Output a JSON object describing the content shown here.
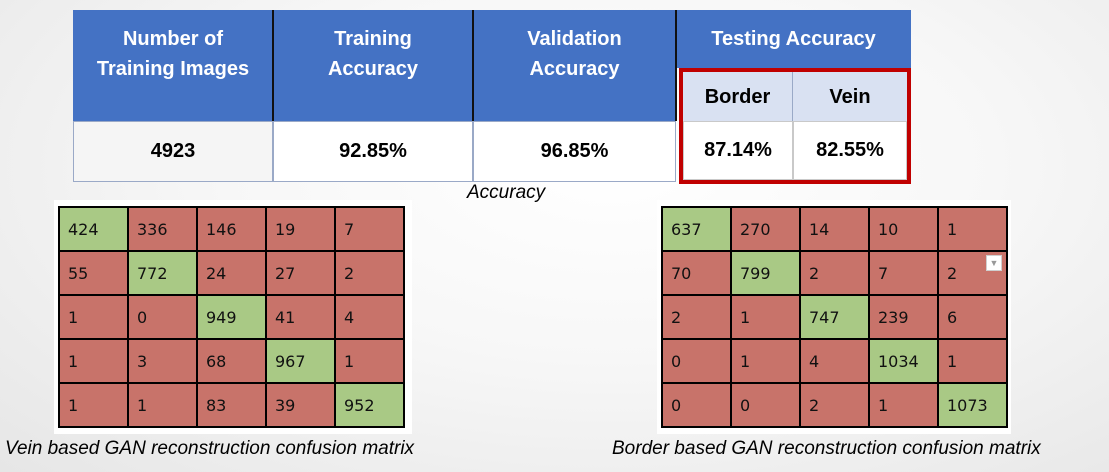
{
  "table": {
    "headers": {
      "num_images": "Number of\nTraining Images",
      "training": "Training\nAccuracy",
      "validation": "Validation\nAccuracy",
      "testing": "Testing Accuracy"
    },
    "subheaders": {
      "border": "Border",
      "vein": "Vein"
    },
    "values": {
      "num_images": "4923",
      "training": "92.85%",
      "validation": "96.85%",
      "border": "87.14%",
      "vein": "82.55%"
    },
    "caption": "Accuracy"
  },
  "vein_matrix": {
    "caption": "Vein based GAN reconstruction confusion matrix",
    "rows": [
      [
        "424",
        "336",
        "146",
        "19",
        "7"
      ],
      [
        "55",
        "772",
        "24",
        "27",
        "2"
      ],
      [
        "1",
        "0",
        "949",
        "41",
        "4"
      ],
      [
        "1",
        "3",
        "68",
        "967",
        "1"
      ],
      [
        "1",
        "1",
        "83",
        "39",
        "952"
      ]
    ]
  },
  "border_matrix": {
    "caption": "Border based GAN reconstruction confusion matrix",
    "rows": [
      [
        "637",
        "270",
        "14",
        "10",
        "1"
      ],
      [
        "70",
        "799",
        "2",
        "7",
        "2"
      ],
      [
        "2",
        "1",
        "747",
        "239",
        "6"
      ],
      [
        "0",
        "1",
        "4",
        "1034",
        "1"
      ],
      [
        "0",
        "0",
        "2",
        "1",
        "1073"
      ]
    ]
  },
  "colors": {
    "header_blue": "#4472c4",
    "subheader_blue": "#d9e1f2",
    "highlight_red": "#c00000",
    "diag_green": "#a9c985",
    "off_red": "#c8736a"
  },
  "icons": {
    "filter": "chevron-down-icon"
  }
}
